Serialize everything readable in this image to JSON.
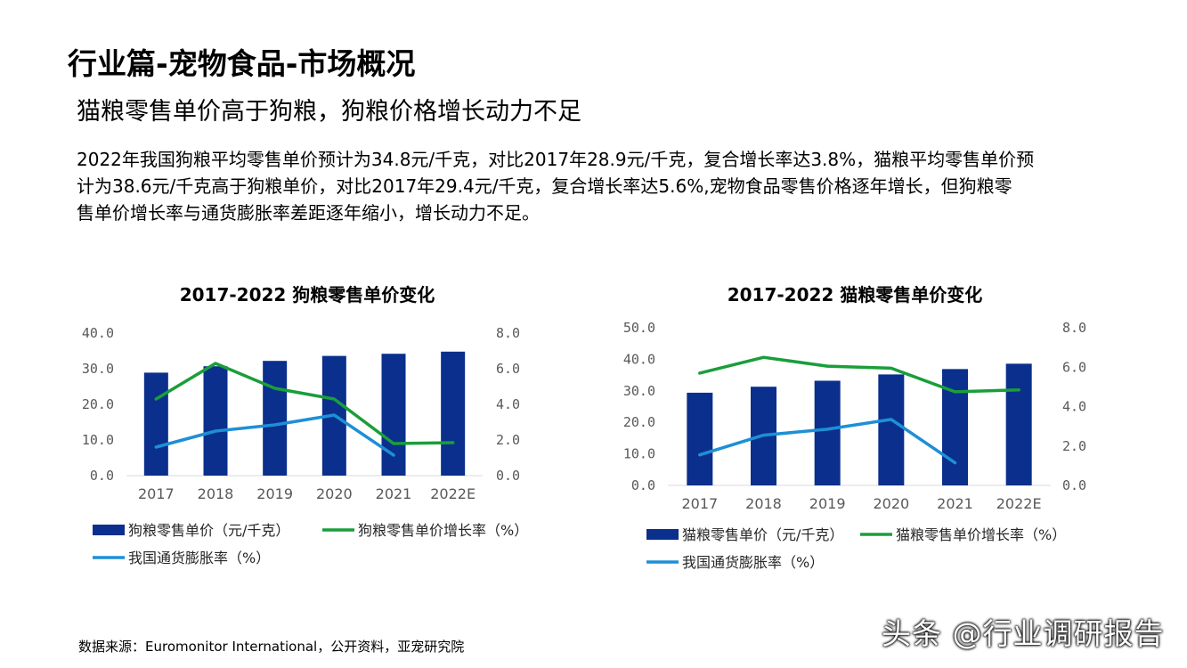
{
  "title": "行业篇-宠物食品-市场概况",
  "subtitle": "猫粮零售单价高于狗粮，狗粮价格增长动力不足",
  "body_lines": [
    "2022年我国狗粮平均零售单价预计为34.8元/千克，对比2017年28.9元/千克，复合增长率达3.8%，猫粮平均零售单价预",
    "计为38.6元/千克高于狗粮单价，对比2017年29.4元/千克，复合增长率达5.6%,宠物食品零售价格逐年增长，但狗粮零",
    "售单价增长率与通货膨胀率差距逐年缩小，增长动力不足。"
  ],
  "source": "数据来源：Euromonitor International，公开资料，亚宠研究院",
  "watermark": "头条 @行业调研报告",
  "colors": {
    "bar": "#0A2F8C",
    "growth_line": "#1A9E3A",
    "inflation_line": "#1E8FD6",
    "axis_text": "#595959",
    "axis_line": "#D9D9D9"
  },
  "chart_data": [
    {
      "type": "bar",
      "title": "2017-2022 狗粮零售单价变化",
      "categories": [
        "2017",
        "2018",
        "2019",
        "2020",
        "2021",
        "2022E"
      ],
      "ylim": [
        0,
        40
      ],
      "y_ticks": [
        "0.0",
        "10.0",
        "20.0",
        "30.0",
        "40.0"
      ],
      "y2lim": [
        0,
        8
      ],
      "y2_ticks": [
        "0.0",
        "2.0",
        "4.0",
        "6.0",
        "8.0"
      ],
      "series": [
        {
          "name": "狗粮零售单价（元/千克）",
          "kind": "bar",
          "axis": "left",
          "values": [
            28.9,
            30.7,
            32.2,
            33.6,
            34.2,
            34.8
          ]
        },
        {
          "name": "狗粮零售单价增长率（%）",
          "kind": "line",
          "axis": "right",
          "values": [
            4.3,
            6.3,
            4.9,
            4.3,
            1.8,
            1.85
          ]
        },
        {
          "name": "我国通货膨胀率（%）",
          "kind": "line",
          "axis": "right",
          "values": [
            1.6,
            2.5,
            2.85,
            3.4,
            1.15,
            null
          ]
        }
      ],
      "grid": false,
      "legend_position": "bottom"
    },
    {
      "type": "bar",
      "title": "2017-2022 猫粮零售单价变化",
      "categories": [
        "2017",
        "2018",
        "2019",
        "2020",
        "2021",
        "2022E"
      ],
      "ylim": [
        0,
        50
      ],
      "y_ticks": [
        "0.0",
        "10.0",
        "20.0",
        "30.0",
        "40.0",
        "50.0"
      ],
      "y2lim": [
        0,
        8
      ],
      "y2_ticks": [
        "0.0",
        "2.0",
        "4.0",
        "6.0",
        "8.0"
      ],
      "series": [
        {
          "name": "猫粮零售单价（元/千克）",
          "kind": "bar",
          "axis": "left",
          "values": [
            29.4,
            31.3,
            33.2,
            35.2,
            36.9,
            38.6
          ]
        },
        {
          "name": "猫粮零售单价增长率（%）",
          "kind": "line",
          "axis": "right",
          "values": [
            5.7,
            6.5,
            6.05,
            5.95,
            4.75,
            4.85
          ]
        },
        {
          "name": "我国通货膨胀率（%）",
          "kind": "line",
          "axis": "right",
          "values": [
            1.55,
            2.55,
            2.85,
            3.35,
            1.15,
            null
          ]
        }
      ],
      "grid": false,
      "legend_position": "bottom"
    }
  ]
}
